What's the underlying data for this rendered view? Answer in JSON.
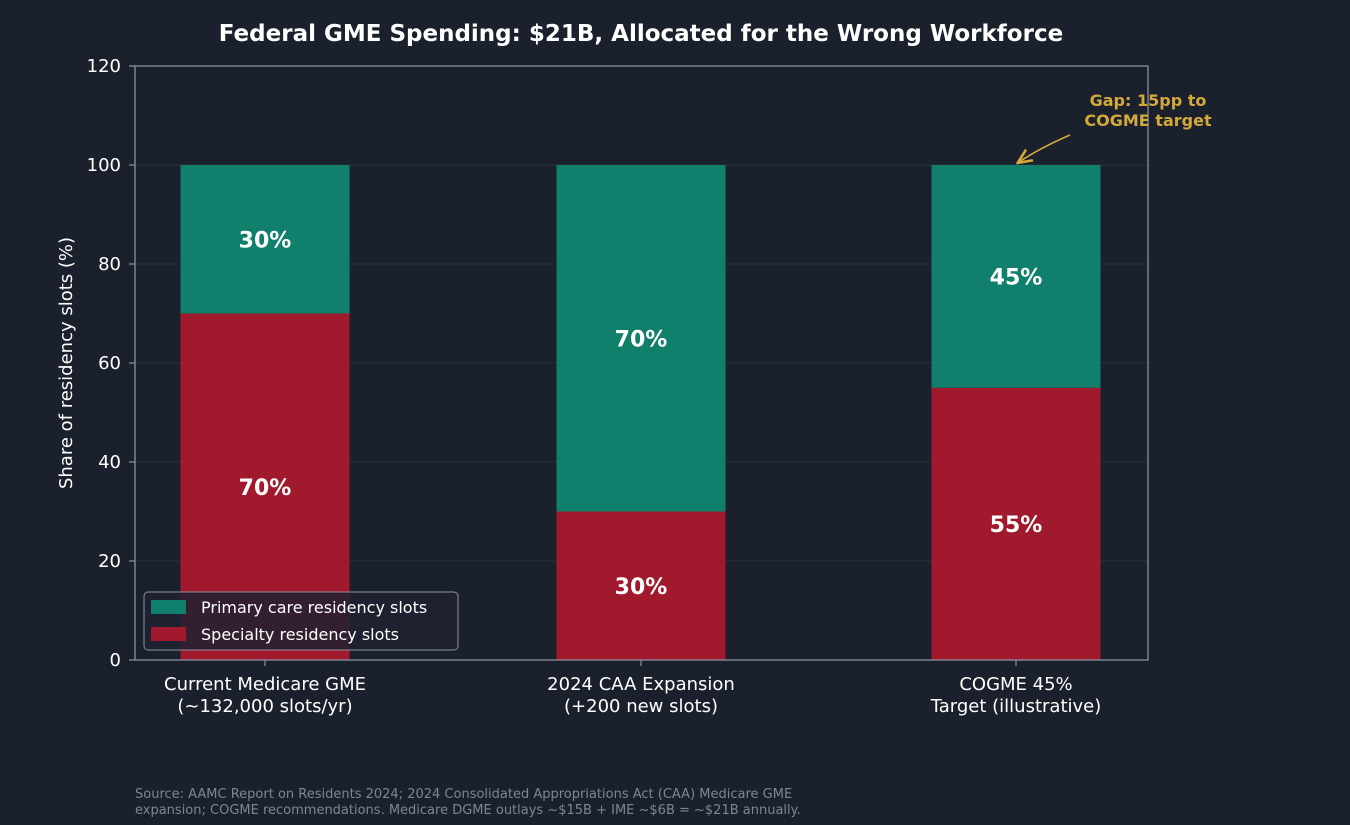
{
  "chart_data": {
    "type": "bar",
    "stacked": true,
    "title": "Federal GME Spending: $21B, Allocated for the Wrong Workforce",
    "xlabel": "",
    "ylabel": "Share of residency slots (%)",
    "ylim": [
      0,
      120
    ],
    "yticks": [
      "0",
      "20",
      "40",
      "60",
      "80",
      "100",
      "120"
    ],
    "grid": true,
    "categories": [
      [
        "Current Medicare GME",
        "(~132,000 slots/yr)"
      ],
      [
        "2024 CAA Expansion",
        "(+200 new slots)"
      ],
      [
        "COGME 45%",
        "Target (illustrative)"
      ]
    ],
    "series": [
      {
        "name": "Specialty residency slots",
        "color": "#a0192c",
        "values": [
          70,
          30,
          55
        ],
        "labels": [
          "70%",
          "30%",
          "55%"
        ]
      },
      {
        "name": "Primary care residency slots",
        "color": "#10806c",
        "values": [
          30,
          70,
          45
        ],
        "labels": [
          "30%",
          "70%",
          "45%"
        ]
      }
    ],
    "legend_order": [
      1,
      0
    ],
    "legend_position": "lower-left",
    "annotation": {
      "text": [
        "Gap: 15pp to",
        "COGME target"
      ],
      "points_to_category": 2,
      "points_to_value": 100,
      "color": "#d4a93a"
    },
    "source": [
      "Source: AAMC Report on Residents 2024; 2024 Consolidated Appropriations Act (CAA) Medicare GME",
      "expansion; COGME recommendations. Medicare DGME outlays ~$15B + IME ~$6B = ~$21B annually."
    ]
  }
}
